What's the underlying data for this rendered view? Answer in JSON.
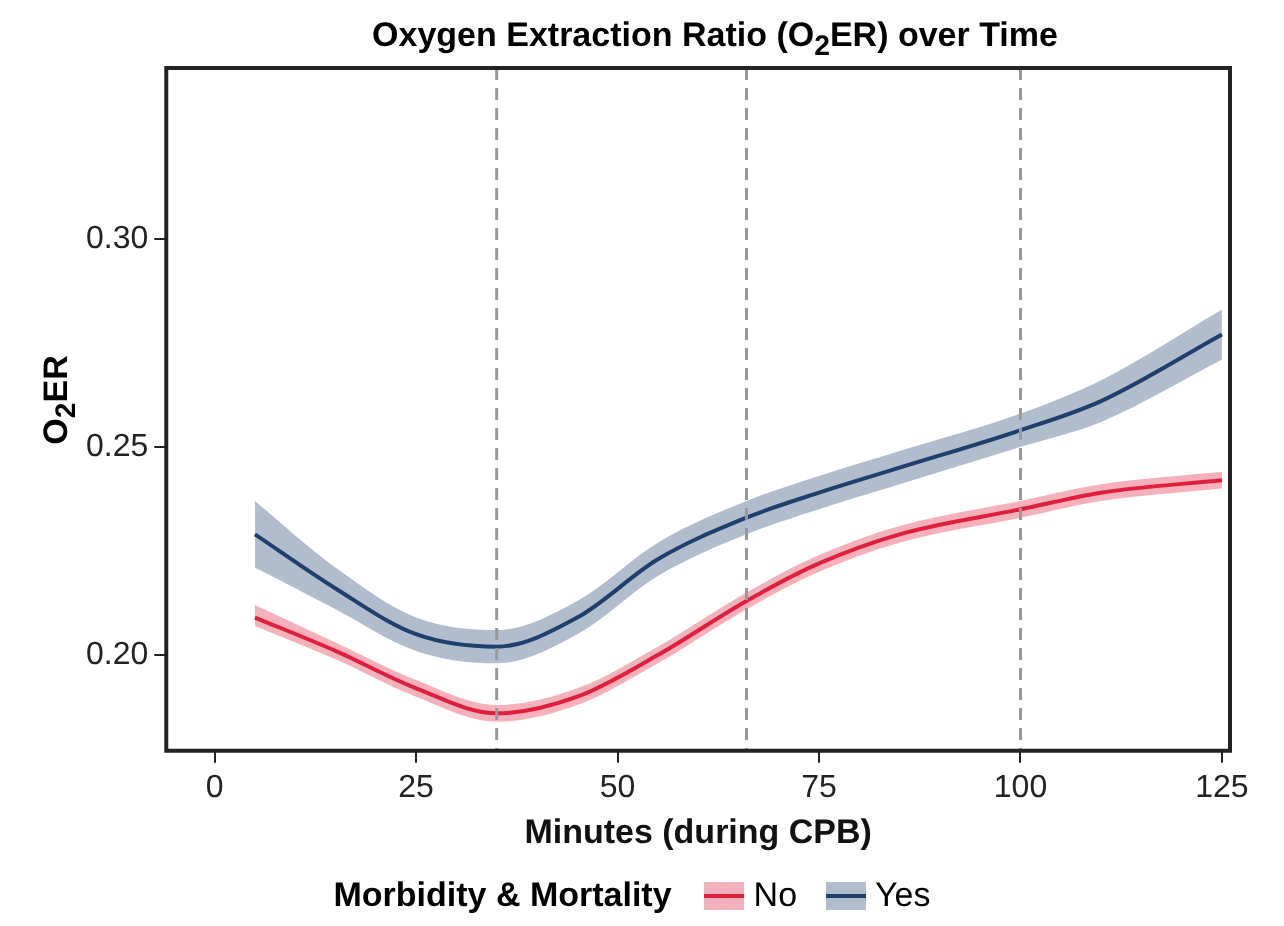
{
  "chart_data": {
    "type": "line",
    "title": "Oxygen Extraction Ratio (O$_{2}$ER) over Time",
    "xlabel": "Minutes (during CPB)",
    "ylabel": "O$_{2}$ER",
    "legend_title": "Morbidity & Mortality",
    "legend": "bottom",
    "grid": false,
    "marker": "none",
    "line_style": "solid",
    "xlim": [
      -6,
      126
    ],
    "xticks": [
      0,
      25,
      50,
      75,
      100,
      125
    ],
    "ylim": [
      0.177,
      0.341
    ],
    "yticks": [
      {
        "value": 0.2,
        "label": "0.20"
      },
      {
        "value": 0.25,
        "label": "0.25"
      },
      {
        "value": 0.3,
        "label": "0.30"
      }
    ],
    "x": [
      5,
      15,
      25,
      35,
      45,
      55,
      66,
      75,
      85,
      100,
      110,
      125
    ],
    "series": [
      {
        "name": "No",
        "color": "#e0203f",
        "values": [
          0.209,
          0.201,
          0.192,
          0.186,
          0.19,
          0.2,
          0.213,
          0.222,
          0.229,
          0.235,
          0.239,
          0.242
        ],
        "lower": [
          0.207,
          0.199,
          0.19,
          0.184,
          0.188,
          0.198,
          0.211,
          0.22,
          0.227,
          0.233,
          0.237,
          0.24
        ],
        "upper": [
          0.212,
          0.203,
          0.194,
          0.188,
          0.192,
          0.202,
          0.215,
          0.224,
          0.231,
          0.237,
          0.241,
          0.244
        ]
      },
      {
        "name": "Yes",
        "color": "#1f3f6e",
        "values": [
          0.229,
          0.216,
          0.205,
          0.202,
          0.209,
          0.223,
          0.233,
          0.239,
          0.245,
          0.254,
          0.261,
          0.277
        ],
        "lower": [
          0.221,
          0.211,
          0.201,
          0.198,
          0.205,
          0.219,
          0.229,
          0.235,
          0.241,
          0.25,
          0.256,
          0.271
        ],
        "upper": [
          0.237,
          0.221,
          0.209,
          0.206,
          0.213,
          0.227,
          0.237,
          0.243,
          0.249,
          0.258,
          0.266,
          0.283
        ]
      }
    ],
    "ref_lines": [
      {
        "axis": "x",
        "value": 35,
        "color": "#999999",
        "line_style": "dashed"
      },
      {
        "axis": "x",
        "value": 66,
        "color": "#999999",
        "line_style": "dashed"
      },
      {
        "axis": "x",
        "value": 100,
        "color": "#999999",
        "line_style": "dashed"
      }
    ]
  }
}
